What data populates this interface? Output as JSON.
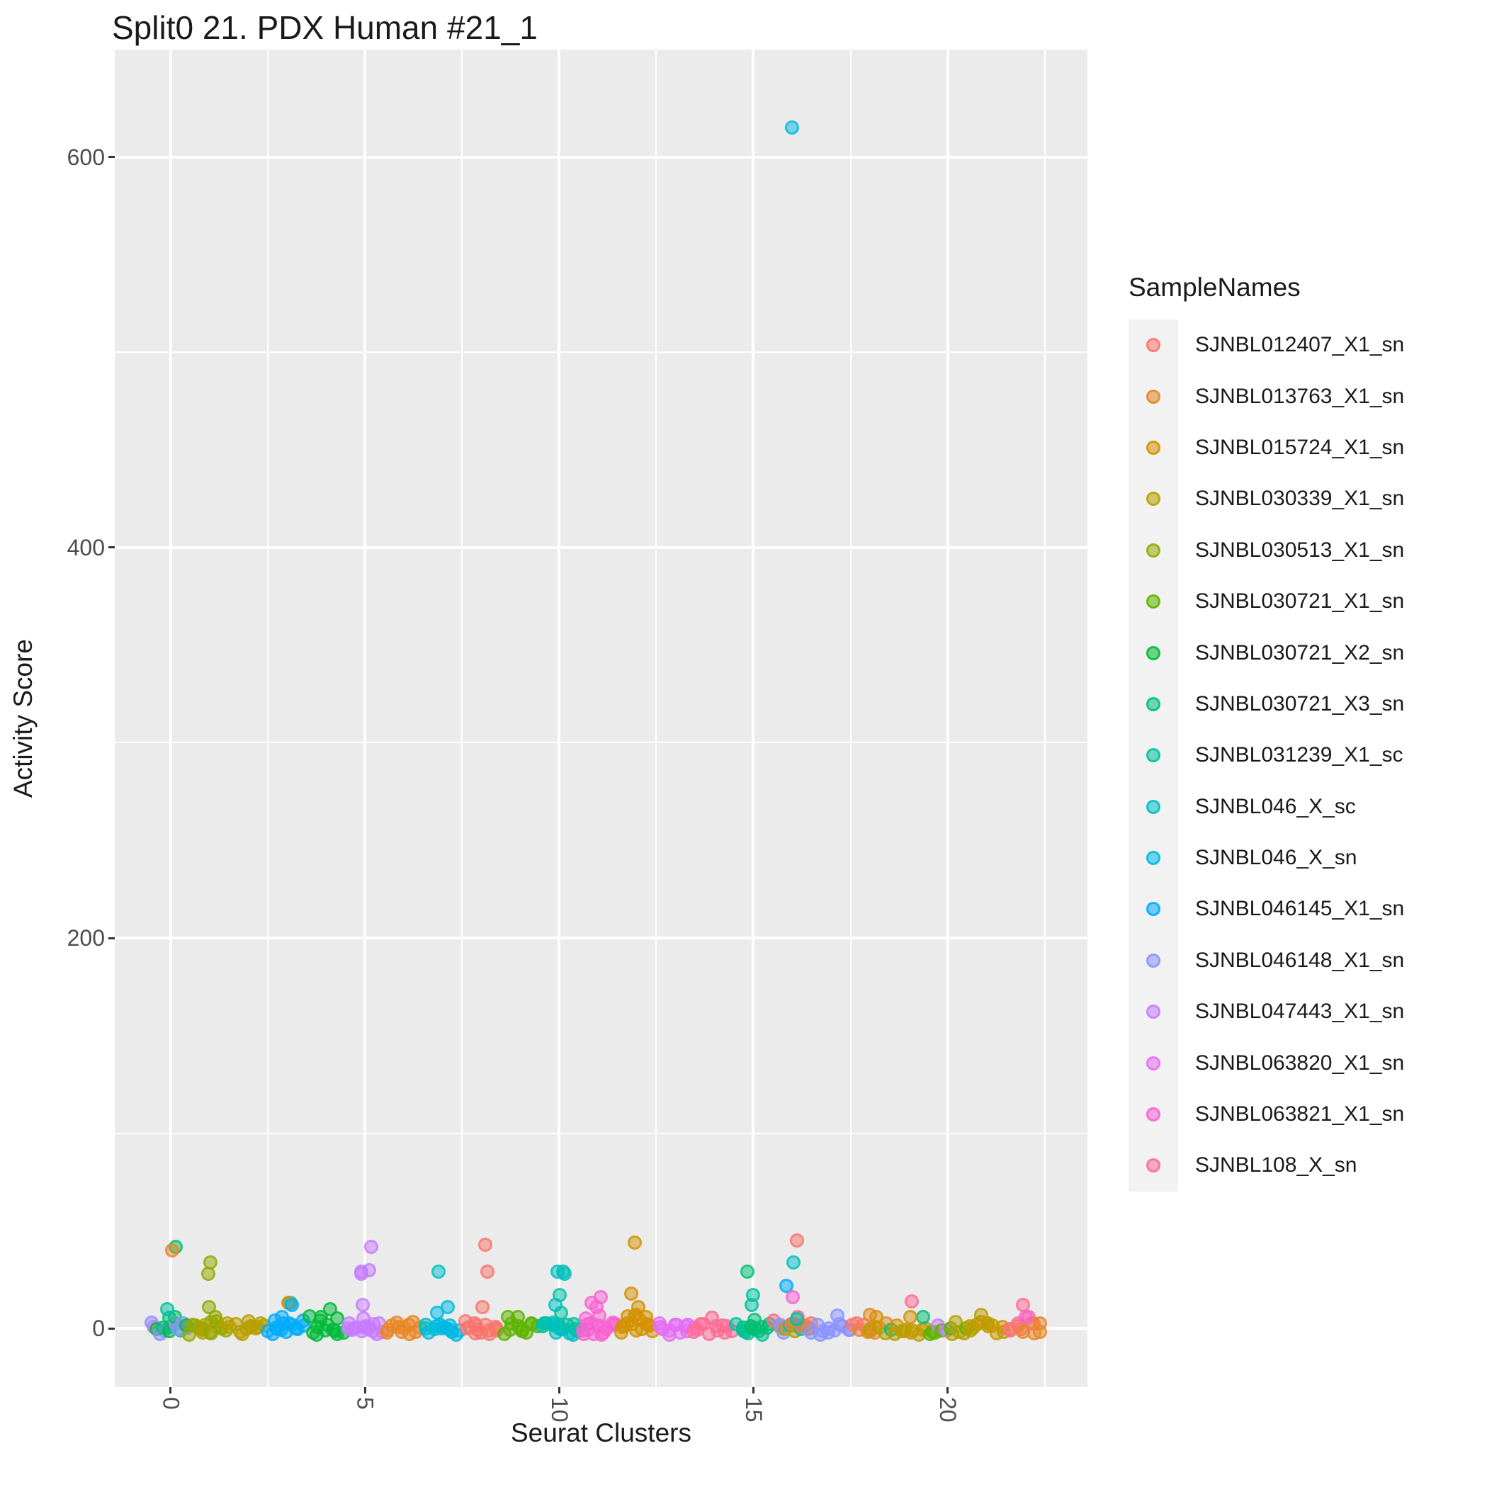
{
  "title": "Split0 21. PDX Human #21_1",
  "legend": {
    "title": "SampleNames"
  },
  "chart_data": {
    "type": "scatter",
    "title": "Split0 21. PDX Human #21_1",
    "xlabel": "Seurat Clusters",
    "ylabel": "Activity Score",
    "x_ticks": [
      0,
      5,
      10,
      15,
      20
    ],
    "x_tick_labels": [
      "0",
      "5",
      "10",
      "15",
      "20"
    ],
    "x_minor": [
      2.5,
      7.5,
      12.5,
      17.5,
      22.5
    ],
    "y_ticks": [
      0,
      200,
      400,
      600
    ],
    "y_tick_labels": [
      "0",
      "200",
      "400",
      "600"
    ],
    "y_minor": [
      100,
      300,
      500
    ],
    "xlim": [
      -1.44,
      23.6
    ],
    "ylim": [
      -30,
      655
    ],
    "grid": true,
    "legend_position": "right",
    "panel_background": "#EBEBEB",
    "samples": {
      "SJNBL012407_X1_sn": "#F8766D",
      "SJNBL013763_X1_sn": "#E88526",
      "SJNBL015724_X1_sn": "#D39200",
      "SJNBL030339_X1_sn": "#B79F00",
      "SJNBL030513_X1_sn": "#93AA00",
      "SJNBL030721_X1_sn": "#5EB300",
      "SJNBL030721_X2_sn": "#00BA38",
      "SJNBL030721_X3_sn": "#00BF74",
      "SJNBL031239_X1_sc": "#00C19F",
      "SJNBL046_X_sc": "#00BFC4",
      "SJNBL046_X_sn": "#00B9E3",
      "SJNBL046145_X1_sn": "#00ACFC",
      "SJNBL046148_X1_sn": "#8B93FF",
      "SJNBL047443_X1_sn": "#C77CFF",
      "SJNBL063820_X1_sn": "#E36EF3",
      "SJNBL063821_X1_sn": "#F862D1",
      "SJNBL108_X_sn": "#FF6B94"
    },
    "clusters": [
      {
        "id": 0,
        "base": [
          "SJNBL030721_X2_sn",
          "SJNBL030721_X3_sn",
          "SJNBL031239_X1_sc",
          "SJNBL046148_X1_sn",
          "SJNBL047443_X1_sn"
        ],
        "n": 16,
        "spread": 24,
        "outliers": [
          [
            "SJNBL030721_X3_sn",
            42
          ],
          [
            "SJNBL013763_X1_sn",
            40
          ],
          [
            "SJNBL031239_X1_sc",
            10
          ]
        ]
      },
      {
        "id": 1,
        "base": [
          "SJNBL030513_X1_sn",
          "SJNBL030339_X1_sn"
        ],
        "n": 18,
        "spread": 26,
        "outliers": [
          [
            "SJNBL030513_X1_sn",
            34
          ],
          [
            "SJNBL030513_X1_sn",
            28
          ],
          [
            "SJNBL030513_X1_sn",
            11
          ]
        ]
      },
      {
        "id": 2,
        "base": [
          "SJNBL030339_X1_sn"
        ],
        "n": 12,
        "spread": 24,
        "outliers": []
      },
      {
        "id": 3,
        "base": [
          "SJNBL046145_X1_sn"
        ],
        "n": 14,
        "spread": 26,
        "outliers": [
          [
            "SJNBL046_X_sc",
            13
          ],
          [
            "SJNBL015724_X1_sn",
            13
          ],
          [
            "SJNBL046145_X1_sn",
            12
          ],
          [
            "SJNBL046145_X1_sn",
            6
          ]
        ]
      },
      {
        "id": 4,
        "base": [
          "SJNBL030721_X2_sn"
        ],
        "n": 12,
        "spread": 22,
        "outliers": [
          [
            "SJNBL030721_X2_sn",
            10
          ],
          [
            "SJNBL030721_X2_sn",
            6
          ]
        ]
      },
      {
        "id": 5,
        "base": [
          "SJNBL047443_X1_sn"
        ],
        "n": 16,
        "spread": 24,
        "outliers": [
          [
            "SJNBL047443_X1_sn",
            42
          ],
          [
            "SJNBL047443_X1_sn",
            30
          ],
          [
            "SJNBL047443_X1_sn",
            29
          ],
          [
            "SJNBL047443_X1_sn",
            28
          ],
          [
            "SJNBL047443_X1_sn",
            12
          ]
        ]
      },
      {
        "id": 6,
        "base": [
          "SJNBL013763_X1_sn"
        ],
        "n": 12,
        "spread": 24,
        "outliers": []
      },
      {
        "id": 7,
        "base": [
          "SJNBL046_X_sn",
          "SJNBL046_X_sc"
        ],
        "n": 14,
        "spread": 24,
        "outliers": [
          [
            "SJNBL046_X_sc",
            29
          ],
          [
            "SJNBL046_X_sn",
            11
          ],
          [
            "SJNBL046_X_sn",
            8
          ]
        ]
      },
      {
        "id": 8,
        "base": [
          "SJNBL012407_X1_sn"
        ],
        "n": 14,
        "spread": 24,
        "outliers": [
          [
            "SJNBL012407_X1_sn",
            43
          ],
          [
            "SJNBL012407_X1_sn",
            29
          ],
          [
            "SJNBL012407_X1_sn",
            11
          ]
        ]
      },
      {
        "id": 9,
        "base": [
          "SJNBL030721_X1_sn"
        ],
        "n": 12,
        "spread": 24,
        "outliers": []
      },
      {
        "id": 10,
        "base": [
          "SJNBL031239_X1_sc",
          "SJNBL046_X_sc"
        ],
        "n": 18,
        "spread": 26,
        "outliers": [
          [
            "SJNBL046_X_sc",
            29
          ],
          [
            "SJNBL031239_X1_sc",
            29
          ],
          [
            "SJNBL046_X_sc",
            28
          ],
          [
            "SJNBL031239_X1_sc",
            17
          ],
          [
            "SJNBL046_X_sc",
            12
          ],
          [
            "SJNBL031239_X1_sc",
            8
          ]
        ]
      },
      {
        "id": 11,
        "base": [
          "SJNBL063821_X1_sn"
        ],
        "n": 16,
        "spread": 24,
        "outliers": [
          [
            "SJNBL063821_X1_sn",
            16
          ],
          [
            "SJNBL063821_X1_sn",
            13
          ],
          [
            "SJNBL063821_X1_sn",
            11
          ]
        ]
      },
      {
        "id": 12,
        "base": [
          "SJNBL015724_X1_sn"
        ],
        "n": 16,
        "spread": 24,
        "outliers": [
          [
            "SJNBL015724_X1_sn",
            44
          ],
          [
            "SJNBL015724_X1_sn",
            18
          ],
          [
            "SJNBL015724_X1_sn",
            11
          ]
        ]
      },
      {
        "id": 13,
        "base": [
          "SJNBL063820_X1_sn"
        ],
        "n": 12,
        "spread": 26,
        "outliers": []
      },
      {
        "id": 14,
        "base": [
          "SJNBL108_X_sn"
        ],
        "n": 12,
        "spread": 26,
        "outliers": []
      },
      {
        "id": 15,
        "base": [
          "SJNBL031239_X1_sc",
          "SJNBL030721_X3_sn"
        ],
        "n": 14,
        "spread": 22,
        "outliers": [
          [
            "SJNBL030721_X3_sn",
            29
          ],
          [
            "SJNBL031239_X1_sc",
            17
          ],
          [
            "SJNBL031239_X1_sc",
            12
          ]
        ]
      },
      {
        "id": 16,
        "base": [
          "SJNBL012407_X1_sn",
          "SJNBL013763_X1_sn",
          "SJNBL030339_X1_sn",
          "SJNBL031239_X1_sc",
          "SJNBL108_X_sn",
          "SJNBL046148_X1_sn",
          "SJNBL015724_X1_sn"
        ],
        "n": 20,
        "spread": 24,
        "outliers": [
          [
            "SJNBL046_X_sn",
            615
          ],
          [
            "SJNBL012407_X1_sn",
            45
          ],
          [
            "SJNBL046_X_sc",
            34
          ],
          [
            "SJNBL046145_X1_sn",
            22
          ],
          [
            "SJNBL063821_X1_sn",
            16
          ],
          [
            "SJNBL108_X_sn",
            6
          ],
          [
            "SJNBL031239_X1_sc",
            5
          ]
        ]
      },
      {
        "id": 17,
        "base": [
          "SJNBL046148_X1_sn"
        ],
        "n": 12,
        "spread": 26,
        "outliers": []
      },
      {
        "id": 18,
        "base": [
          "SJNBL030339_X1_sn",
          "SJNBL013763_X1_sn",
          "SJNBL012407_X1_sn"
        ],
        "n": 12,
        "spread": 24,
        "outliers": [
          [
            "SJNBL013763_X1_sn",
            7
          ],
          [
            "SJNBL015724_X1_sn",
            6
          ]
        ]
      },
      {
        "id": 19,
        "base": [
          "SJNBL030339_X1_sn",
          "SJNBL030721_X3_sn",
          "SJNBL015724_X1_sn"
        ],
        "n": 12,
        "spread": 24,
        "outliers": [
          [
            "SJNBL108_X_sn",
            14
          ],
          [
            "SJNBL015724_X1_sn",
            6
          ]
        ]
      },
      {
        "id": 20,
        "base": [
          "SJNBL030339_X1_sn",
          "SJNBL047443_X1_sn",
          "SJNBL030721_X1_sn"
        ],
        "n": 12,
        "spread": 24,
        "outliers": []
      },
      {
        "id": 21,
        "base": [
          "SJNBL030339_X1_sn",
          "SJNBL015724_X1_sn"
        ],
        "n": 12,
        "spread": 24,
        "outliers": [
          [
            "SJNBL030339_X1_sn",
            7
          ]
        ]
      },
      {
        "id": 22,
        "base": [
          "SJNBL108_X_sn",
          "SJNBL012407_X1_sn",
          "SJNBL013763_X1_sn"
        ],
        "n": 12,
        "spread": 22,
        "outliers": [
          [
            "SJNBL108_X_sn",
            12
          ],
          [
            "SJNBL063821_X1_sn",
            6
          ]
        ]
      }
    ]
  }
}
